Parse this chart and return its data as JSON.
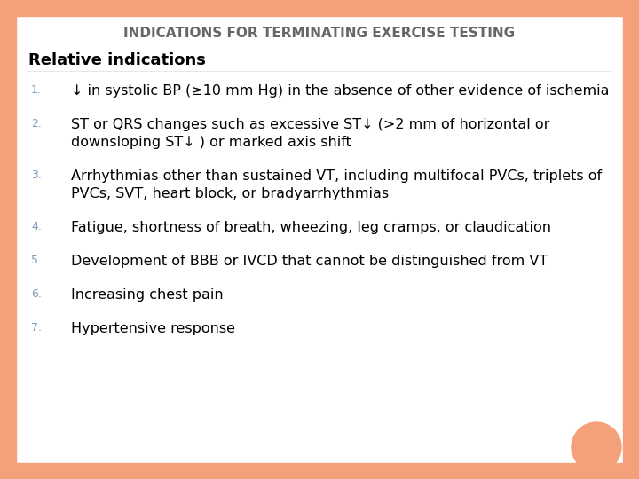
{
  "title_parts": [
    {
      "text": "I",
      "large": true
    },
    {
      "text": "ndications ",
      "large": false
    },
    {
      "text": "for ",
      "large": false
    },
    {
      "text": "T",
      "large": true
    },
    {
      "text": "erminating ",
      "large": false
    },
    {
      "text": "E",
      "large": true
    },
    {
      "text": "xercise ",
      "large": false
    },
    {
      "text": "T",
      "large": true
    },
    {
      "text": "esting",
      "large": false
    }
  ],
  "title_display": "INDICATIONS FOR TERMINATING EXERCISE TESTING",
  "subtitle": "Relative indications",
  "items": [
    {
      "num": "1.",
      "lines": [
        "↓ in systolic BP (≥10 mm Hg) in the absence of other evidence of ischemia"
      ]
    },
    {
      "num": "2.",
      "lines": [
        "ST or QRS changes such as excessive ST↓ (>2 mm of horizontal or",
        "downsloping ST↓ ) or marked axis shift"
      ]
    },
    {
      "num": "3.",
      "lines": [
        "Arrhythmias other than sustained VT, including multifocal PVCs, triplets of",
        "PVCs, SVT, heart block, or bradyarrhythmias"
      ]
    },
    {
      "num": "4.",
      "lines": [
        "Fatigue, shortness of breath, wheezing, leg cramps, or claudication"
      ]
    },
    {
      "num": "5.",
      "lines": [
        "Development of BBB or IVCD that cannot be distinguished from VT"
      ]
    },
    {
      "num": "6.",
      "lines": [
        "Increasing chest pain"
      ]
    },
    {
      "num": "7.",
      "lines": [
        "Hypertensive response"
      ]
    }
  ],
  "bg_color": "#ffffff",
  "left_border_color": "#f4a07a",
  "right_border_color": "#f4a07a",
  "title_color": "#666666",
  "subtitle_color": "#000000",
  "text_color": "#000000",
  "num_color": "#7a9cc0",
  "orange_circle_color": "#f4a07a",
  "title_fontsize_large": 13,
  "title_fontsize_small": 10,
  "subtitle_fontsize": 13,
  "item_fontsize": 11.5,
  "num_fontsize": 9
}
